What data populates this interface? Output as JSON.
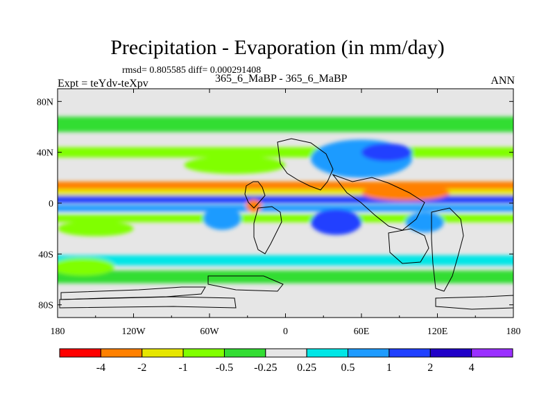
{
  "chart_data": {
    "type": "heatmap",
    "title": "Precipitation - Evaporation (in mm/day)",
    "stats": "rmsd= 0.805585  diff= 0.000291408",
    "left_label": "Expt = teYdv-teXpv",
    "center_label": "365_6_MaBP - 365_6_MaBP",
    "right_label": "ANN",
    "x_ticks": [
      "180",
      "120W",
      "60W",
      "0",
      "60E",
      "120E",
      "180"
    ],
    "y_ticks": [
      "80N",
      "40N",
      "0",
      "40S",
      "80S"
    ],
    "xlim": [
      -180,
      180
    ],
    "ylim": [
      -90,
      90
    ],
    "x_tick_values": [
      -180,
      -120,
      -60,
      0,
      60,
      120,
      180
    ],
    "y_tick_values": [
      80,
      40,
      0,
      -40,
      -80
    ],
    "colorbar": {
      "labels": [
        "-4",
        "-2",
        "-1",
        "-0.5",
        "-0.25",
        "0.25",
        "0.5",
        "1",
        "2",
        "4"
      ],
      "colors": [
        "#ff0000",
        "#ff8000",
        "#e6e600",
        "#80ff00",
        "#33dd33",
        "#e6e6e6",
        "#00e6e6",
        "#1e9bff",
        "#2040ff",
        "#2000c8",
        "#9a30ff"
      ]
    },
    "bands": [
      {
        "lat": 62,
        "height": 12,
        "color": "#33dd33"
      },
      {
        "lat": 40,
        "height": 8,
        "color": "#80ff00"
      },
      {
        "lat": 14,
        "height": 6,
        "color": "#ff8000"
      },
      {
        "lat": 8,
        "height": 6,
        "color": "#e6e600"
      },
      {
        "lat": 3,
        "height": 6,
        "color": "#2040ff"
      },
      {
        "lat": -4,
        "height": 5,
        "color": "#1e9bff"
      },
      {
        "lat": -12,
        "height": 6,
        "color": "#80ff00"
      },
      {
        "lat": -45,
        "height": 8,
        "color": "#00e6e6"
      },
      {
        "lat": -58,
        "height": 10,
        "color": "#33dd33"
      }
    ],
    "blobs": [
      {
        "lon": -40,
        "lat": 30,
        "w": 80,
        "h": 14,
        "color": "#80ff00"
      },
      {
        "lon": 60,
        "lat": 35,
        "w": 80,
        "h": 30,
        "color": "#1e9bff"
      },
      {
        "lon": 80,
        "lat": 40,
        "w": 40,
        "h": 14,
        "color": "#2040ff"
      },
      {
        "lon": 95,
        "lat": 8,
        "w": 70,
        "h": 12,
        "color": "#ff8000"
      },
      {
        "lon": 40,
        "lat": -15,
        "w": 40,
        "h": 20,
        "color": "#2040ff"
      },
      {
        "lon": -50,
        "lat": -12,
        "w": 30,
        "h": 18,
        "color": "#1e9bff"
      },
      {
        "lon": 110,
        "lat": -15,
        "w": 30,
        "h": 16,
        "color": "#1e9bff"
      },
      {
        "lon": -25,
        "lat": -2,
        "w": 12,
        "h": 10,
        "color": "#ff8000"
      },
      {
        "lon": -150,
        "lat": -20,
        "w": 60,
        "h": 12,
        "color": "#80ff00"
      },
      {
        "lon": -160,
        "lat": -50,
        "w": 50,
        "h": 14,
        "color": "#80ff00"
      }
    ]
  }
}
